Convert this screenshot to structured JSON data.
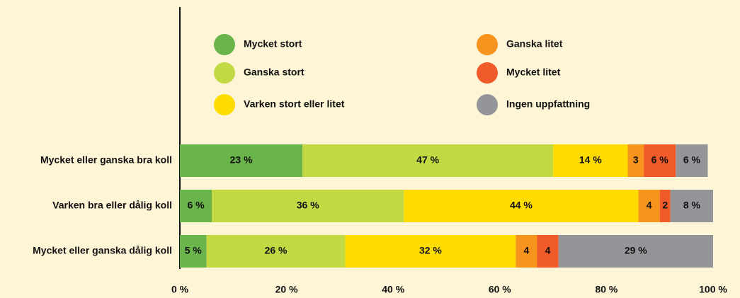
{
  "chart_data": {
    "type": "stacked-bar-horizontal",
    "categories": [
      "Mycket eller ganska bra koll",
      "Varken bra eller dålig koll",
      "Mycket eller ganska dålig koll"
    ],
    "series": [
      {
        "name": "Mycket stort",
        "color": "#6ab44c",
        "values": [
          23,
          6,
          5
        ],
        "value_labels": [
          "23 %",
          "6 %",
          "5 %"
        ]
      },
      {
        "name": "Ganska stort",
        "color": "#c3d944",
        "values": [
          47,
          36,
          26
        ],
        "value_labels": [
          "47 %",
          "36 %",
          "26 %"
        ]
      },
      {
        "name": "Varken stort eller litet",
        "color": "#ffdc00",
        "values": [
          14,
          44,
          32
        ],
        "value_labels": [
          "14 %",
          "44 %",
          "32 %"
        ]
      },
      {
        "name": "Ganska litet",
        "color": "#f7941d",
        "values": [
          3,
          4,
          4
        ],
        "value_labels": [
          "3",
          "4",
          "4"
        ]
      },
      {
        "name": "Mycket litet",
        "color": "#f15a29",
        "values": [
          6,
          2,
          4
        ],
        "value_labels": [
          "6 %",
          "2",
          "4"
        ]
      },
      {
        "name": "Ingen uppfattning",
        "color": "#939598",
        "values": [
          6,
          8,
          29
        ],
        "value_labels": [
          "6 %",
          "8 %",
          "29 %"
        ]
      }
    ],
    "xlim": [
      0,
      100
    ],
    "xticks": [
      {
        "value": 0,
        "label": "0 %"
      },
      {
        "value": 20,
        "label": "20 %"
      },
      {
        "value": 40,
        "label": "40 %"
      },
      {
        "value": 60,
        "label": "60 %"
      },
      {
        "value": 80,
        "label": "80 %"
      },
      {
        "value": 100,
        "label": "100 %"
      }
    ],
    "legend": "top"
  }
}
